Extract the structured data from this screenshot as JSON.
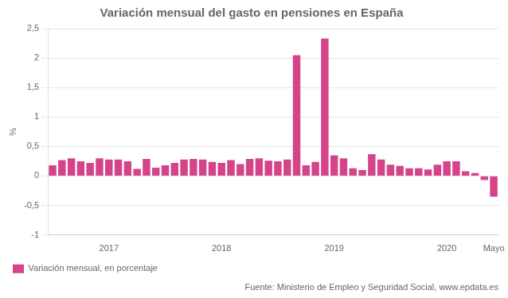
{
  "chart_data": {
    "type": "bar",
    "title": "Variación mensual del gasto en pensiones en España",
    "y_label": "%",
    "annotations": [
      "Fuente: Ministerio de Empleo y Seguridad Social, www.epdata.es"
    ],
    "categories": [
      null,
      null,
      null,
      null,
      null,
      null,
      "2017",
      null,
      null,
      null,
      null,
      null,
      null,
      null,
      null,
      null,
      null,
      null,
      "2018",
      null,
      null,
      null,
      null,
      null,
      null,
      null,
      null,
      null,
      null,
      null,
      "2019",
      null,
      null,
      null,
      null,
      null,
      null,
      null,
      null,
      null,
      null,
      null,
      "2020",
      null,
      null,
      null,
      null,
      "Mayo"
    ],
    "series": [
      {
        "name": "Variación mensual, en porcentaje",
        "color": "#d4448a",
        "values": [
          0.18,
          0.27,
          0.3,
          0.25,
          0.22,
          0.3,
          0.28,
          0.28,
          0.25,
          0.12,
          0.29,
          0.14,
          0.18,
          0.22,
          0.28,
          0.29,
          0.28,
          0.24,
          0.22,
          0.27,
          0.2,
          0.29,
          0.3,
          0.26,
          0.25,
          0.28,
          2.05,
          0.18,
          0.24,
          2.33,
          0.35,
          0.3,
          0.13,
          0.1,
          0.37,
          0.28,
          0.19,
          0.17,
          0.13,
          0.13,
          0.11,
          0.19,
          0.25,
          0.25,
          0.08,
          0.05,
          -0.07,
          -0.35
        ]
      }
    ],
    "ylim": [
      -1,
      2.5
    ],
    "yticks": [
      -1,
      {
        "value": -0.5,
        "label": "-0,5"
      },
      0,
      {
        "value": 0.5,
        "label": "0,5"
      },
      1,
      {
        "value": 1.5,
        "label": "1,5"
      },
      2,
      {
        "value": 2.5,
        "label": "2,5"
      }
    ],
    "grid": true,
    "legend": "bottom"
  }
}
